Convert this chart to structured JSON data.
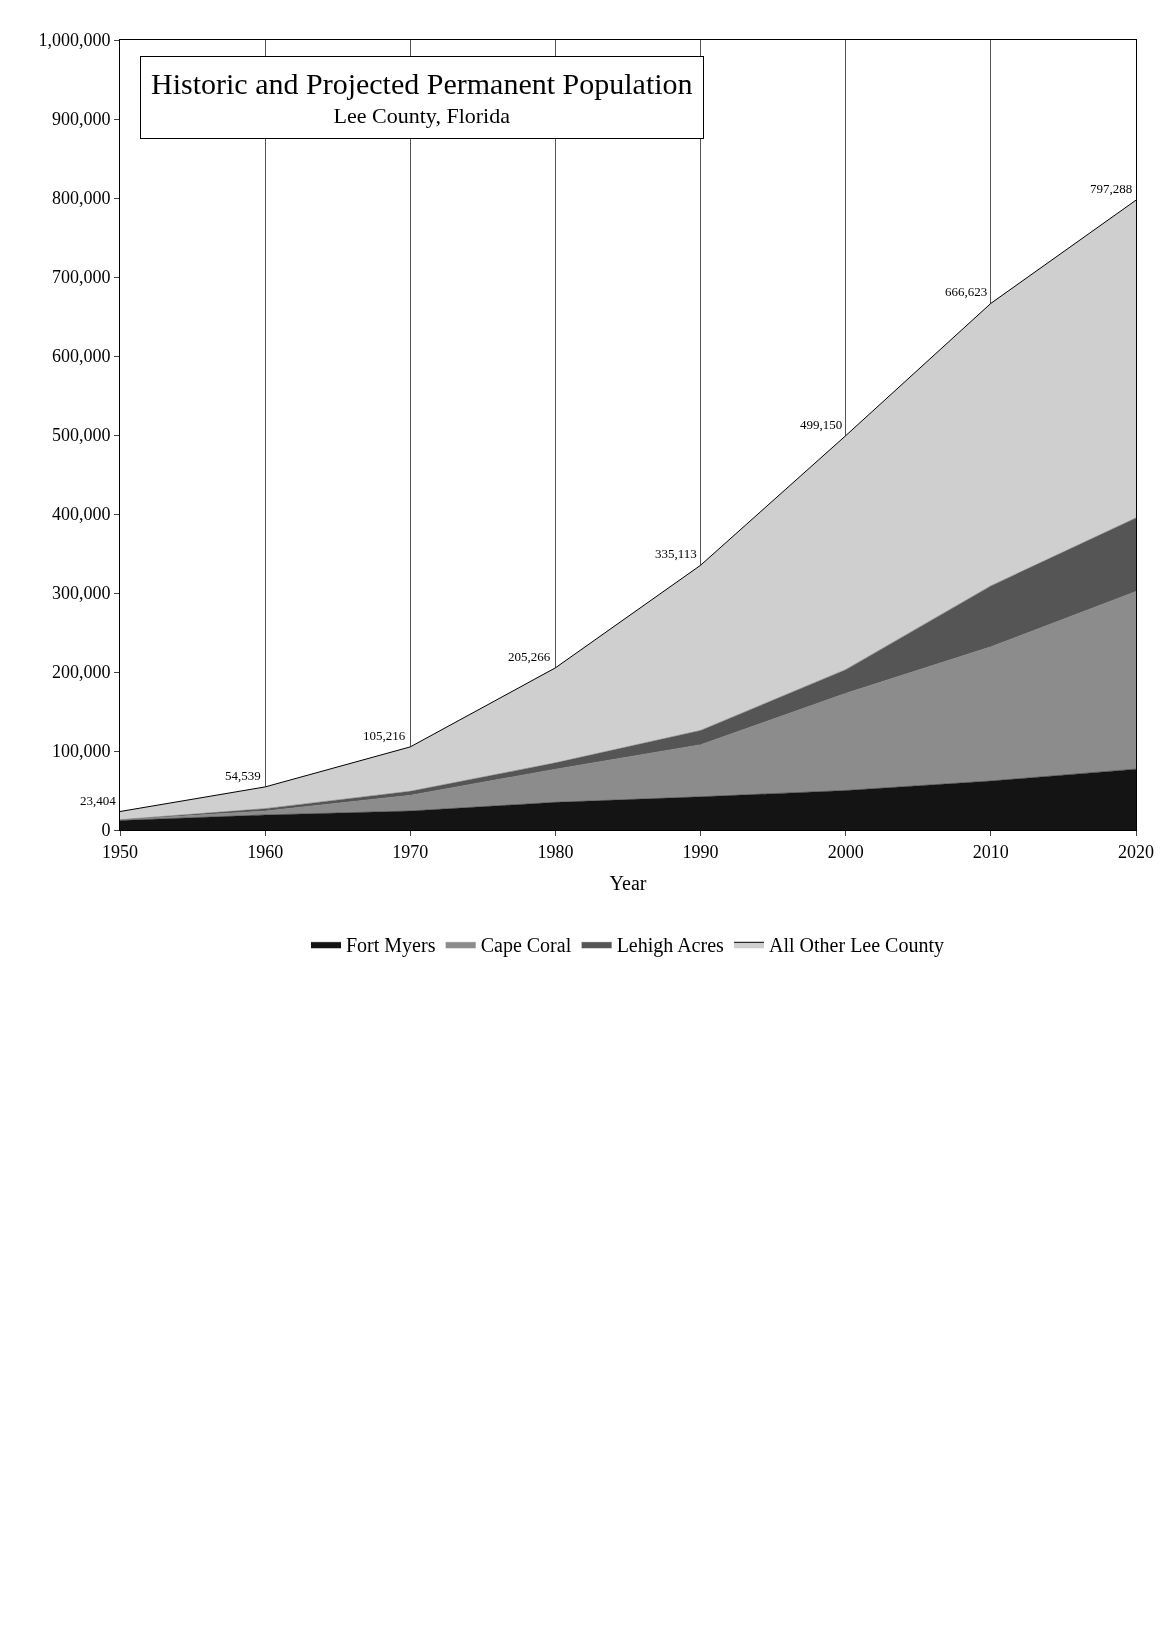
{
  "chart_data": {
    "type": "area",
    "title": "Historic and Projected Permanent Population",
    "subtitle": "Lee County, Florida",
    "xlabel": "Year",
    "x": [
      1950,
      1960,
      1970,
      1980,
      1990,
      2000,
      2010,
      2020
    ],
    "stacked": true,
    "series": [
      {
        "name": "Fort Myers",
        "color": "#141414",
        "values": [
          12000,
          19000,
          24000,
          35000,
          42000,
          50000,
          62000,
          77000
        ]
      },
      {
        "name": "Cape Coral",
        "color": "#8c8c8c",
        "values": [
          1000,
          5000,
          20000,
          42000,
          66000,
          123000,
          170000,
          225000
        ]
      },
      {
        "name": "Lehigh Acres",
        "color": "#555555",
        "values": [
          0,
          3000,
          5000,
          8000,
          18000,
          30000,
          77000,
          93000
        ]
      },
      {
        "name": "All Other Lee County",
        "color": "#cfcfcf",
        "values": [
          10404,
          27539,
          56216,
          120266,
          209113,
          296150,
          357623,
          402288
        ]
      }
    ],
    "totals": [
      "23,404",
      "54,539",
      "105,216",
      "205,266",
      "335,113",
      "499,150",
      "666,623",
      "797,288"
    ],
    "xlim": [
      1950,
      2020
    ],
    "xticks": [
      1950,
      1960,
      1970,
      1980,
      1990,
      2000,
      2010,
      2020
    ],
    "ylim": [
      0,
      1000000
    ],
    "yticks": [
      0,
      {
        "value": 100000,
        "label": "100,000"
      },
      {
        "value": 200000,
        "label": "200,000"
      },
      {
        "value": 300000,
        "label": "300,000"
      },
      {
        "value": 400000,
        "label": "400,000"
      },
      {
        "value": 500000,
        "label": "500,000"
      },
      {
        "value": 600000,
        "label": "600,000"
      },
      {
        "value": 700000,
        "label": "700,000"
      },
      {
        "value": 800000,
        "label": "800,000"
      },
      {
        "value": 900000,
        "label": "900,000"
      },
      {
        "value": 1000000,
        "label": "1,000,000"
      }
    ],
    "grid": "x",
    "legend": "bottom"
  }
}
